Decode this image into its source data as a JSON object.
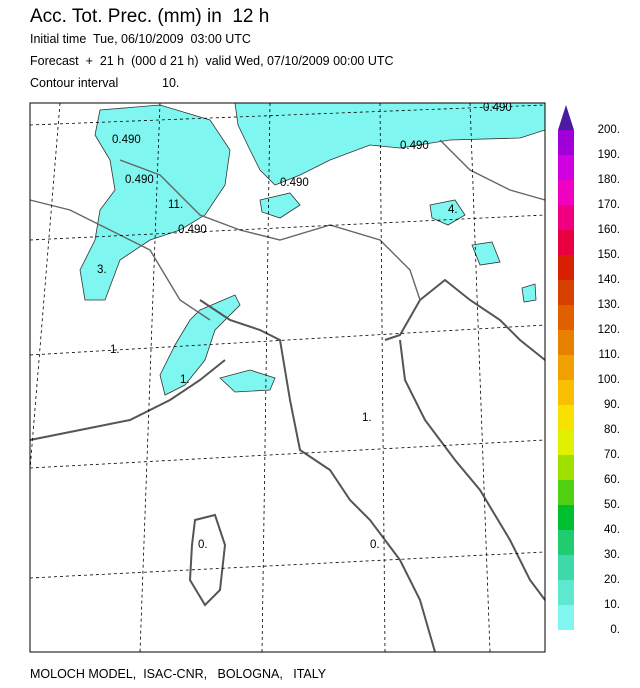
{
  "header": {
    "title": "Acc. Tot. Prec. (mm) in  12 h",
    "initial_time": "Initial time  Tue, 06/10/2009  03:00 UTC",
    "forecast": "Forecast  +  21 h  (000 d 21 h)  valid Wed, 07/10/2009 00:00 UTC",
    "contour_label": "Contour interval",
    "contour_value": "10."
  },
  "map": {
    "contour_labels": [
      "0.490",
      "0.490",
      "0.490",
      "0.490",
      "0.490",
      "0.490",
      "11.",
      "3.",
      "1.",
      "1.",
      "4.",
      "1.",
      "0.",
      "0."
    ]
  },
  "colorbar": {
    "labels": [
      "0.",
      "10.",
      "20.",
      "30.",
      "40.",
      "50.",
      "60.",
      "70.",
      "80.",
      "90.",
      "100.",
      "110.",
      "120.",
      "130.",
      "140.",
      "150.",
      "160.",
      "170.",
      "180.",
      "190.",
      "200."
    ],
    "colors": [
      "#7ff7f0",
      "#5fe8d0",
      "#3fd8a8",
      "#20cc70",
      "#00c030",
      "#50d010",
      "#a0e000",
      "#e0f000",
      "#f8e000",
      "#f8c000",
      "#f0a000",
      "#e88000",
      "#e06000",
      "#d84000",
      "#d82000",
      "#e80040",
      "#f00080",
      "#f000c0",
      "#d000e0",
      "#a000d8"
    ],
    "top_color": "#4a1aa0"
  },
  "footer": "MOLOCH MODEL,  ISAC-CNR,   BOLOGNA,   ITALY"
}
